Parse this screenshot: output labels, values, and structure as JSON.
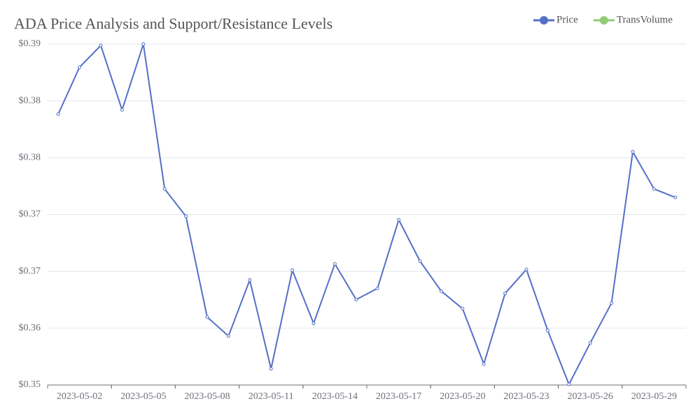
{
  "chart_data": {
    "type": "line",
    "title": "ADA Price Analysis and Support/Resistance Levels",
    "categories": [
      null,
      "2023-05-02",
      null,
      null,
      "2023-05-05",
      null,
      null,
      "2023-05-08",
      null,
      null,
      "2023-05-11",
      null,
      null,
      "2023-05-14",
      null,
      null,
      "2023-05-17",
      null,
      null,
      "2023-05-20",
      null,
      null,
      "2023-05-23",
      null,
      null,
      "2023-05-26",
      null,
      null,
      "2023-05-29",
      null
    ],
    "series": [
      {
        "name": "Price",
        "color": "#5470c6",
        "values": [
          0.38261,
          0.38756,
          0.38985,
          0.38305,
          0.39,
          0.3747,
          0.37182,
          0.36117,
          0.35917,
          0.36509,
          0.3557,
          0.36612,
          0.36051,
          0.36679,
          0.36302,
          0.3642,
          0.37145,
          0.36708,
          0.36391,
          0.36206,
          0.35622,
          0.36368,
          0.3662,
          0.35977,
          0.35407,
          0.35844,
          0.36265,
          0.37862,
          0.3747,
          0.37381
        ]
      },
      {
        "name": "TransVolume",
        "color": "#91cc75",
        "values": [
          null,
          null,
          null,
          null,
          null,
          null,
          null,
          null,
          null,
          null,
          null,
          null,
          null,
          null,
          null,
          null,
          null,
          null,
          null,
          null,
          null,
          null,
          null,
          null,
          null,
          null,
          null,
          null,
          null,
          null
        ]
      }
    ],
    "ylim": [
      0.354,
      0.39
    ],
    "yticks": [
      {
        "value": 0.354,
        "label": "$0.35"
      },
      {
        "value": 0.36,
        "label": "$0.36"
      },
      {
        "value": 0.366,
        "label": "$0.37"
      },
      {
        "value": 0.372,
        "label": "$0.37"
      },
      {
        "value": 0.378,
        "label": "$0.38"
      },
      {
        "value": 0.384,
        "label": "$0.38"
      },
      {
        "value": 0.39,
        "label": "$0.39"
      }
    ],
    "grid": true,
    "legend": "top-right"
  }
}
